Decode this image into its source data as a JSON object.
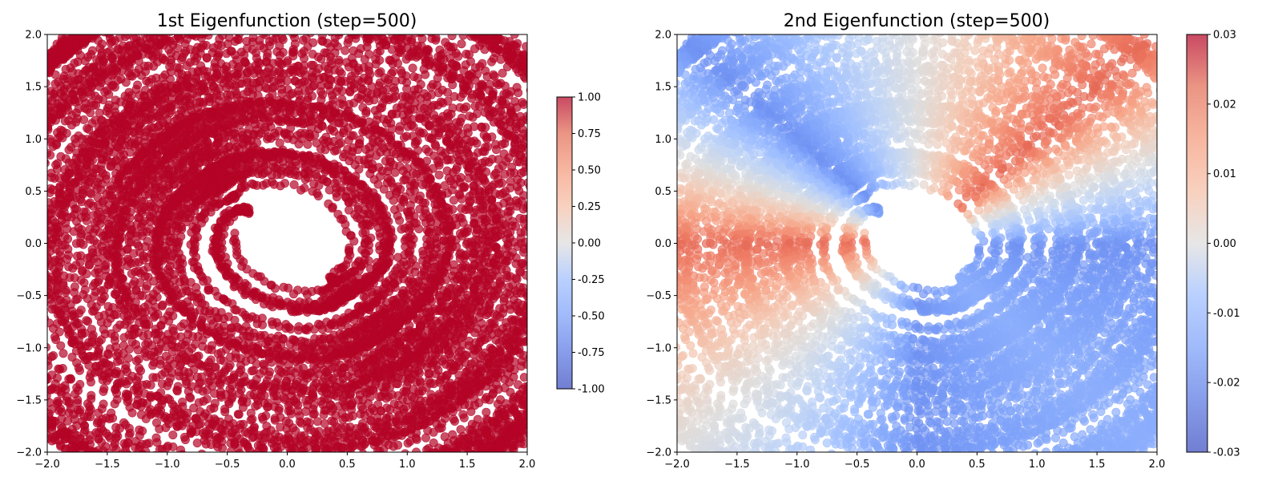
{
  "chart_data": [
    {
      "type": "scatter",
      "title": "1st Eigenfunction (step=500)",
      "xlabel": "",
      "ylabel": "",
      "xlim": [
        -2.0,
        2.0
      ],
      "ylim": [
        -2.0,
        2.0
      ],
      "x_ticks": [
        "−2.0",
        "−1.5",
        "−1.0",
        "−0.5",
        "0.0",
        "0.5",
        "1.0",
        "1.5",
        "2.0"
      ],
      "y_ticks": [
        "−2.0",
        "−1.5",
        "−1.0",
        "−0.5",
        "0.0",
        "0.5",
        "1.0",
        "1.5",
        "2.0"
      ],
      "x_tick_values": [
        -2.0,
        -1.5,
        -1.0,
        -0.5,
        0.0,
        0.5,
        1.0,
        1.5,
        2.0
      ],
      "y_tick_values": [
        -2.0,
        -1.5,
        -1.0,
        -0.5,
        0.0,
        0.5,
        1.0,
        1.5,
        2.0
      ],
      "colormap": "coolwarm",
      "point_color": "#b40426",
      "grid": false,
      "colorbar": {
        "range": [
          -1.0,
          1.0
        ],
        "ticks": [
          "1.00",
          "0.75",
          "0.50",
          "0.25",
          "0.00",
          "-0.25",
          "-0.50",
          "-0.75",
          "-1.00"
        ],
        "tick_values": [
          1.0,
          0.75,
          0.5,
          0.25,
          0.0,
          -0.25,
          -0.5,
          -0.75,
          -1.0
        ]
      },
      "description_value": 1.0
    },
    {
      "type": "scatter",
      "title": "2nd Eigenfunction (step=500)",
      "xlabel": "",
      "ylabel": "",
      "xlim": [
        -2.0,
        2.0
      ],
      "ylim": [
        -2.0,
        2.0
      ],
      "x_ticks": [
        "−2.0",
        "−1.5",
        "−1.0",
        "−0.5",
        "0.0",
        "0.5",
        "1.0",
        "1.5",
        "2.0"
      ],
      "y_ticks": [
        "−2.0",
        "−1.5",
        "−1.0",
        "−0.5",
        "0.0",
        "0.5",
        "1.0",
        "1.5",
        "2.0"
      ],
      "x_tick_values": [
        -2.0,
        -1.5,
        -1.0,
        -0.5,
        0.0,
        0.5,
        1.0,
        1.5,
        2.0
      ],
      "y_tick_values": [
        -2.0,
        -1.5,
        -1.0,
        -0.5,
        0.0,
        0.5,
        1.0,
        1.5,
        2.0
      ],
      "colormap": "coolwarm",
      "grid": false,
      "colorbar": {
        "range": [
          -0.03,
          0.03
        ],
        "ticks": [
          "0.03",
          "0.02",
          "0.01",
          "0.00",
          "-0.01",
          "-0.02",
          "-0.03"
        ],
        "tick_values": [
          0.03,
          0.02,
          0.01,
          0.0,
          -0.01,
          -0.02,
          -0.03
        ]
      },
      "value_by_angle": [
        {
          "angle_deg": 0,
          "value": -0.02
        },
        {
          "angle_deg": 45,
          "value": 0.02
        },
        {
          "angle_deg": 90,
          "value": 0.0
        },
        {
          "angle_deg": 135,
          "value": -0.02
        },
        {
          "angle_deg": 180,
          "value": 0.02
        },
        {
          "angle_deg": 225,
          "value": 0.0
        },
        {
          "angle_deg": 270,
          "value": -0.02
        },
        {
          "angle_deg": 315,
          "value": -0.015
        }
      ]
    }
  ]
}
